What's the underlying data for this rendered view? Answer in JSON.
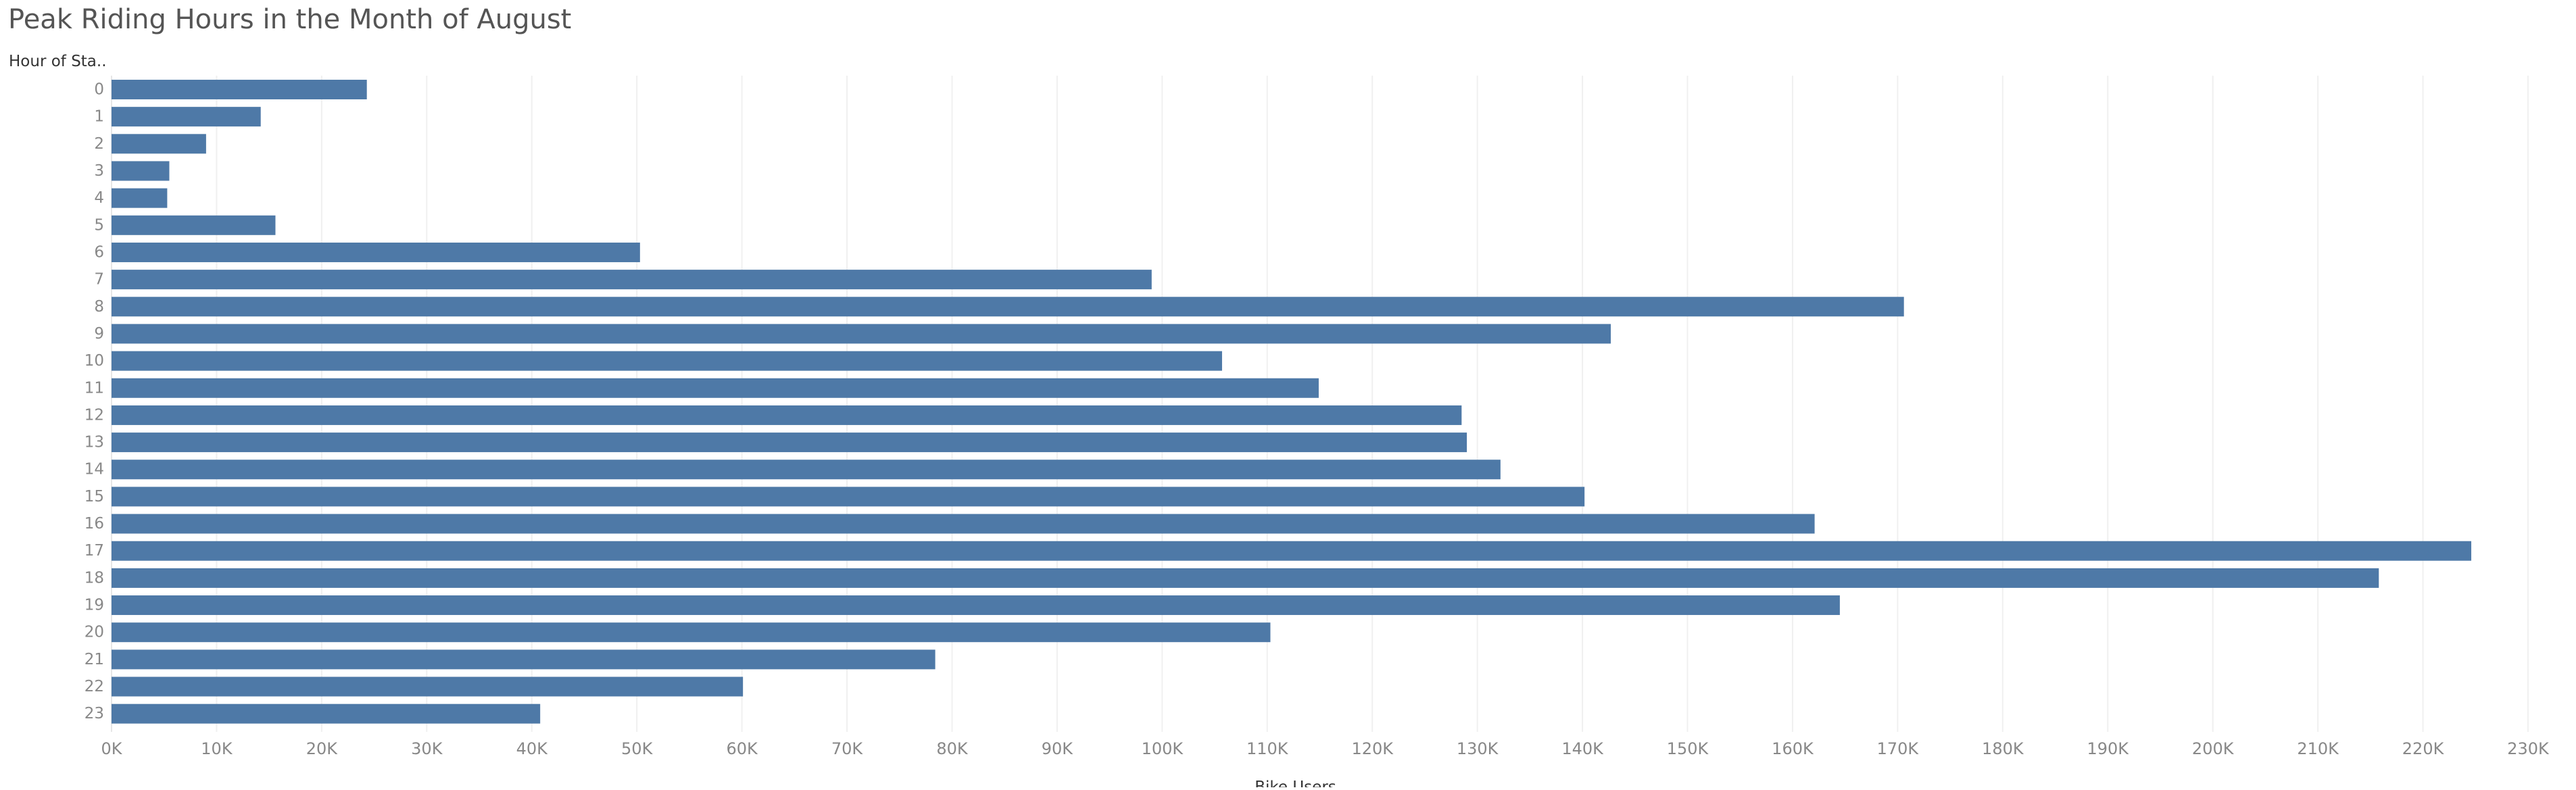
{
  "page": {
    "title": "Peak Riding Hours in the Month of August"
  },
  "chart_data": {
    "type": "bar",
    "orientation": "horizontal",
    "title": "Peak Riding Hours in the Month of August",
    "ylabel": "Hour of Sta..",
    "xlabel": "Bike Users",
    "categories": [
      "0",
      "1",
      "2",
      "3",
      "4",
      "5",
      "6",
      "7",
      "8",
      "9",
      "10",
      "11",
      "12",
      "13",
      "14",
      "15",
      "16",
      "17",
      "18",
      "19",
      "20",
      "21",
      "22",
      "23"
    ],
    "values": [
      24300,
      14200,
      9000,
      5500,
      5300,
      15600,
      50300,
      99000,
      170600,
      142700,
      105700,
      114900,
      128500,
      129000,
      132200,
      140200,
      162100,
      224600,
      215800,
      164500,
      110300,
      78400,
      60100,
      40800
    ],
    "xlim": [
      0,
      230000
    ],
    "x_ticks": [
      {
        "value": 0,
        "label": "0K"
      },
      {
        "value": 10000,
        "label": "10K"
      },
      {
        "value": 20000,
        "label": "20K"
      },
      {
        "value": 30000,
        "label": "30K"
      },
      {
        "value": 40000,
        "label": "40K"
      },
      {
        "value": 50000,
        "label": "50K"
      },
      {
        "value": 60000,
        "label": "60K"
      },
      {
        "value": 70000,
        "label": "70K"
      },
      {
        "value": 80000,
        "label": "80K"
      },
      {
        "value": 90000,
        "label": "90K"
      },
      {
        "value": 100000,
        "label": "100K"
      },
      {
        "value": 110000,
        "label": "110K"
      },
      {
        "value": 120000,
        "label": "120K"
      },
      {
        "value": 130000,
        "label": "130K"
      },
      {
        "value": 140000,
        "label": "140K"
      },
      {
        "value": 150000,
        "label": "150K"
      },
      {
        "value": 160000,
        "label": "160K"
      },
      {
        "value": 170000,
        "label": "170K"
      },
      {
        "value": 180000,
        "label": "180K"
      },
      {
        "value": 190000,
        "label": "190K"
      },
      {
        "value": 200000,
        "label": "200K"
      },
      {
        "value": 210000,
        "label": "210K"
      },
      {
        "value": 220000,
        "label": "220K"
      },
      {
        "value": 230000,
        "label": "230K"
      }
    ],
    "grid": true,
    "colors": {
      "bar": "#4e79a7",
      "grid": "#f0f0f0",
      "tick_label": "#888888",
      "axis_title": "#333333"
    }
  }
}
